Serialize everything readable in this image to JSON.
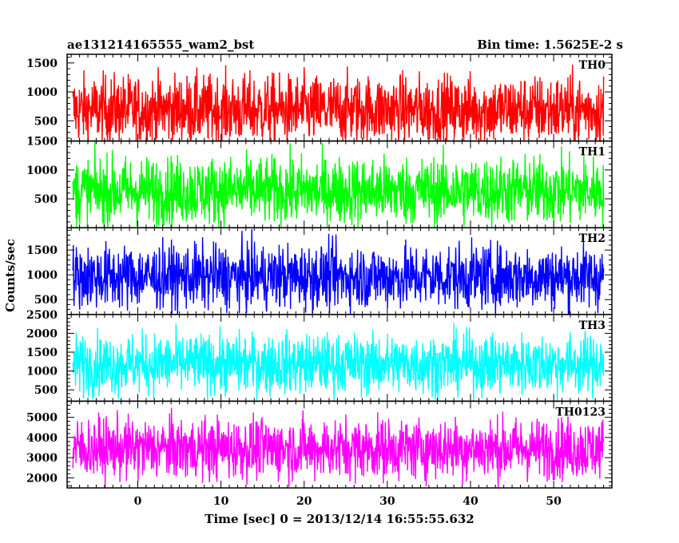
{
  "chart_data": {
    "type": "line",
    "title_left": "ae131214165555_wam2_bst",
    "title_right": "Bin time: 1.5625E-2 s",
    "xlabel": "Time [sec] 0 = 2013/12/14 16:55:55.632",
    "ylabel": "Counts/sec",
    "xlim": [
      -8.5,
      57
    ],
    "x_ticks": [
      0,
      10,
      20,
      30,
      40,
      50
    ],
    "x_tick_labels": [
      "0",
      "10",
      "20",
      "30",
      "40",
      "50"
    ],
    "x_data_range": [
      -7.8,
      56
    ],
    "bin_time_s": 0.015625,
    "grid": false,
    "series": [
      {
        "name": "TH0",
        "color": "#ff0000",
        "ylim": [
          150,
          1650
        ],
        "y_ticks": [
          500,
          1000,
          1500
        ],
        "y_tick_labels": [
          "500",
          "1000",
          "1500"
        ],
        "mean": 690,
        "typical_range": [
          200,
          1450
        ]
      },
      {
        "name": "TH1",
        "color": "#00ff00",
        "ylim": [
          0,
          1500
        ],
        "y_ticks": [
          500,
          1000,
          1500
        ],
        "y_tick_labels": [
          "500",
          "1000",
          "1500"
        ],
        "mean": 640,
        "typical_range": [
          130,
          1350
        ]
      },
      {
        "name": "TH2",
        "color": "#0000ff",
        "ylim": [
          200,
          1950
        ],
        "y_ticks": [
          500,
          1000,
          1500
        ],
        "y_tick_labels": [
          "500",
          "1000",
          "1500"
        ],
        "mean": 960,
        "typical_range": [
          400,
          1750
        ]
      },
      {
        "name": "TH3",
        "color": "#00ffff",
        "ylim": [
          200,
          2500
        ],
        "y_ticks": [
          500,
          1000,
          1500,
          2000,
          2500
        ],
        "y_tick_labels": [
          "500",
          "1000",
          "1500",
          "2000",
          "2500"
        ],
        "mean": 1190,
        "typical_range": [
          550,
          2200
        ]
      },
      {
        "name": "TH0123",
        "color": "#ff00ff",
        "ylim": [
          1500,
          5800
        ],
        "y_ticks": [
          2000,
          3000,
          4000,
          5000
        ],
        "y_tick_labels": [
          "2000",
          "3000",
          "4000",
          "5000"
        ],
        "mean": 3450,
        "typical_range": [
          2050,
          5200
        ]
      }
    ]
  }
}
